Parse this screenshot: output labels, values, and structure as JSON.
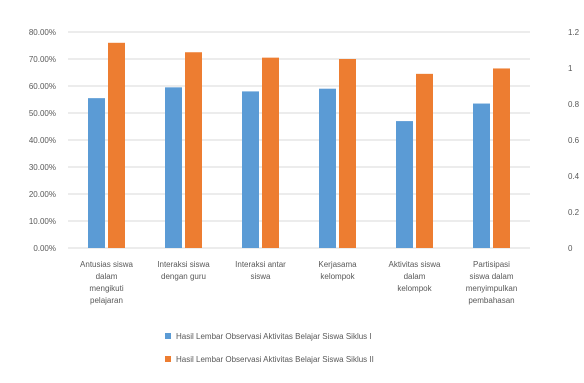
{
  "chart_data": {
    "type": "bar",
    "categories": [
      [
        "Antusias siswa",
        "dalam",
        "mengikuti",
        "pelajaran"
      ],
      [
        "Interaksi siswa",
        "dengan guru"
      ],
      [
        "Interaksi antar",
        "siswa"
      ],
      [
        "Kerjasama",
        "kelompok"
      ],
      [
        "Aktivitas siswa",
        "dalam",
        "kelompok"
      ],
      [
        "Partisipasi",
        "siswa dalam",
        "menyimpulkan",
        "pembahasan"
      ]
    ],
    "series": [
      {
        "name": "Hasil Lembar Observasi Aktivitas Belajar Siswa Siklus I",
        "color": "#5B9BD5",
        "values": [
          55.5,
          59.5,
          58.0,
          59.0,
          47.0,
          53.5
        ]
      },
      {
        "name": "Hasil Lembar Observasi Aktivitas Belajar Siswa Siklus II",
        "color": "#ED7D31",
        "values": [
          76.0,
          72.5,
          70.5,
          70.0,
          64.5,
          66.5
        ]
      }
    ],
    "y_left": {
      "min": 0,
      "max": 80,
      "ticks": [
        "0.00%",
        "10.00%",
        "20.00%",
        "30.00%",
        "40.00%",
        "50.00%",
        "60.00%",
        "70.00%",
        "80.00%"
      ]
    },
    "y_right": {
      "min": 0,
      "max": 1.2,
      "ticks": [
        "0",
        "0.2",
        "0.4",
        "0.6",
        "0.8",
        "1",
        "1.2"
      ]
    },
    "grid": true,
    "legend_position": "bottom"
  }
}
